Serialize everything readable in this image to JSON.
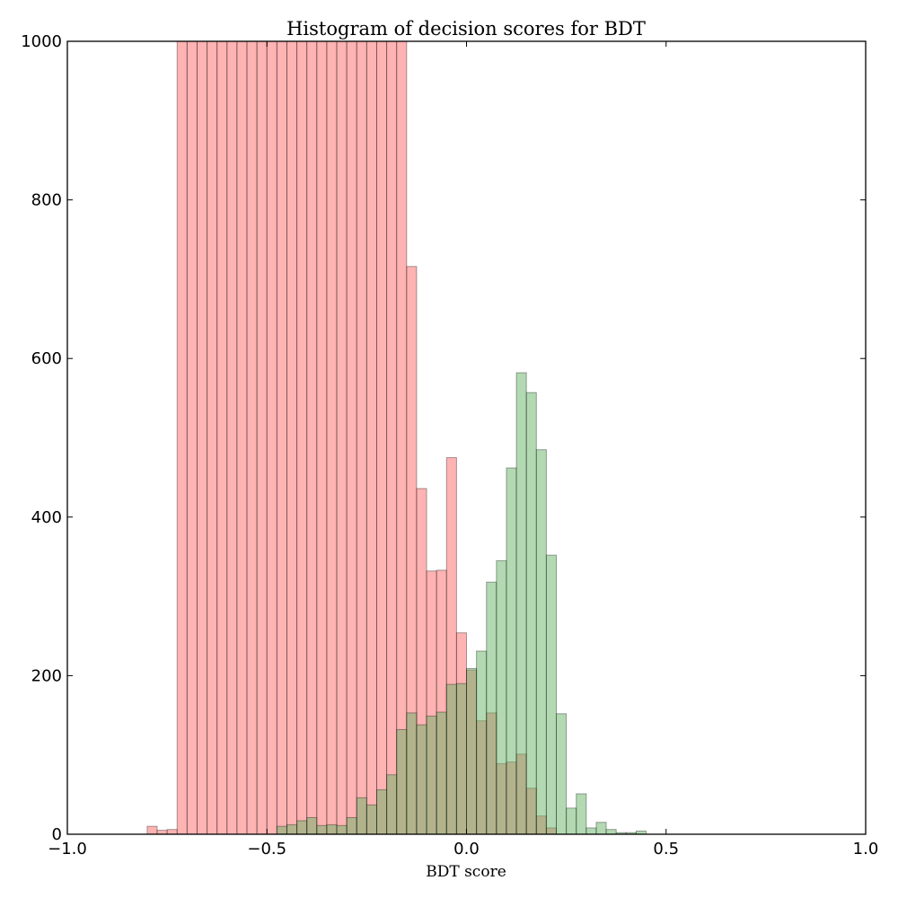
{
  "chart_data": {
    "type": "bar",
    "title": "Histogram of decision scores for BDT",
    "xlabel": "BDT score",
    "ylabel": "",
    "xlim": [
      -1.0,
      1.0
    ],
    "ylim": [
      0,
      1000
    ],
    "x_ticks": [
      "−1.0",
      "−0.5",
      "0.0",
      "0.5",
      "1.0"
    ],
    "y_ticks": [
      "0",
      "200",
      "400",
      "600",
      "800",
      "1000"
    ],
    "x_tick_values": [
      -1.0,
      -0.5,
      0.0,
      0.5,
      1.0
    ],
    "y_tick_values": [
      0,
      200,
      400,
      600,
      800,
      1000
    ],
    "grid": false,
    "legend": "none",
    "bin_width": 0.025,
    "series": [
      {
        "color": "#ff8080",
        "opacity": 0.6,
        "bins": [
          [
            -0.8,
            10
          ],
          [
            -0.775,
            5
          ],
          [
            -0.75,
            6
          ],
          [
            -0.725,
            1000
          ],
          [
            -0.7,
            1000
          ],
          [
            -0.675,
            1000
          ],
          [
            -0.65,
            1000
          ],
          [
            -0.625,
            1000
          ],
          [
            -0.6,
            1000
          ],
          [
            -0.575,
            1000
          ],
          [
            -0.55,
            1000
          ],
          [
            -0.525,
            1000
          ],
          [
            -0.5,
            1000
          ],
          [
            -0.475,
            1000
          ],
          [
            -0.45,
            1000
          ],
          [
            -0.425,
            1000
          ],
          [
            -0.4,
            1000
          ],
          [
            -0.375,
            1000
          ],
          [
            -0.35,
            1000
          ],
          [
            -0.325,
            1000
          ],
          [
            -0.3,
            1000
          ],
          [
            -0.275,
            1000
          ],
          [
            -0.25,
            1000
          ],
          [
            -0.225,
            1000
          ],
          [
            -0.2,
            1000
          ],
          [
            -0.175,
            1000
          ],
          [
            -0.15,
            716
          ],
          [
            -0.125,
            436
          ],
          [
            -0.1,
            332
          ],
          [
            -0.075,
            333
          ],
          [
            -0.05,
            475
          ],
          [
            -0.025,
            254
          ],
          [
            0.0,
            207
          ],
          [
            0.025,
            143
          ],
          [
            0.05,
            153
          ],
          [
            0.075,
            89
          ],
          [
            0.1,
            91
          ],
          [
            0.125,
            101
          ],
          [
            0.15,
            58
          ],
          [
            0.175,
            23
          ],
          [
            0.2,
            8
          ]
        ]
      },
      {
        "color": "#66b366",
        "opacity": 0.5,
        "bins": [
          [
            -0.475,
            10
          ],
          [
            -0.45,
            12
          ],
          [
            -0.425,
            17
          ],
          [
            -0.4,
            21
          ],
          [
            -0.375,
            11
          ],
          [
            -0.35,
            12
          ],
          [
            -0.325,
            11
          ],
          [
            -0.3,
            21
          ],
          [
            -0.275,
            46
          ],
          [
            -0.25,
            37
          ],
          [
            -0.225,
            56
          ],
          [
            -0.2,
            75
          ],
          [
            -0.175,
            132
          ],
          [
            -0.15,
            153
          ],
          [
            -0.125,
            138
          ],
          [
            -0.1,
            149
          ],
          [
            -0.075,
            154
          ],
          [
            -0.05,
            189
          ],
          [
            -0.025,
            190
          ],
          [
            0.0,
            209
          ],
          [
            0.025,
            231
          ],
          [
            0.05,
            318
          ],
          [
            0.075,
            345
          ],
          [
            0.1,
            462
          ],
          [
            0.125,
            582
          ],
          [
            0.15,
            557
          ],
          [
            0.175,
            485
          ],
          [
            0.2,
            352
          ],
          [
            0.225,
            152
          ],
          [
            0.25,
            33
          ],
          [
            0.275,
            51
          ],
          [
            0.3,
            8
          ],
          [
            0.325,
            15
          ],
          [
            0.35,
            6
          ],
          [
            0.375,
            2
          ],
          [
            0.4,
            2
          ],
          [
            0.425,
            4
          ]
        ]
      }
    ]
  }
}
